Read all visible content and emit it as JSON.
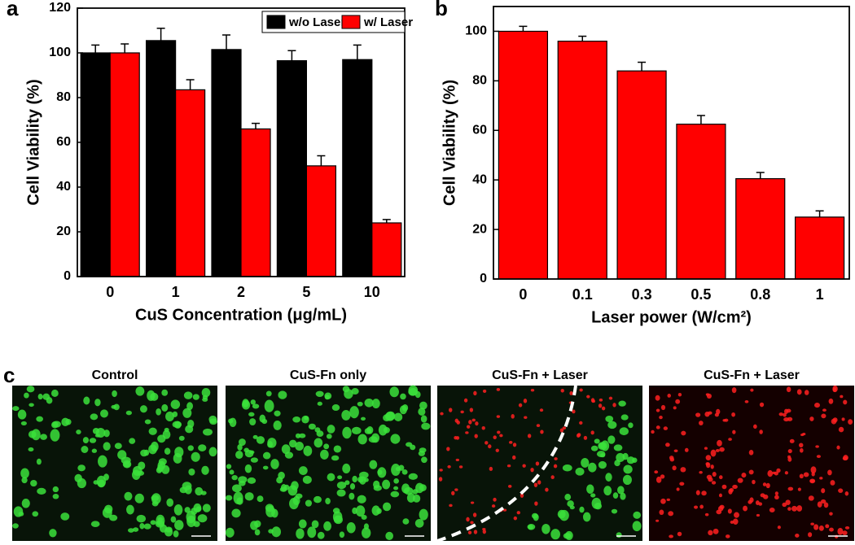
{
  "chart_data": [
    {
      "type": "bar",
      "panel_label": "a",
      "xlabel": "CuS Concentration (μg/mL)",
      "ylabel": "Cell Viability (%)",
      "categories": [
        "0",
        "1",
        "2",
        "5",
        "10"
      ],
      "series": [
        {
          "name": "w/o Laser",
          "color": "#000000",
          "values": [
            100,
            105.5,
            101.5,
            96.5,
            97
          ],
          "errors": [
            3.5,
            5.5,
            6.5,
            4.5,
            6.5
          ]
        },
        {
          "name": "w/ Laser",
          "color": "#ff0000",
          "values": [
            100,
            83.5,
            66,
            49.5,
            24
          ],
          "errors": [
            4,
            4.5,
            2.5,
            4.5,
            1.5
          ]
        }
      ],
      "ylim": [
        0,
        120
      ],
      "yticks": [
        0,
        20,
        40,
        60,
        80,
        100,
        120
      ],
      "legend": "upper right"
    },
    {
      "type": "bar",
      "panel_label": "b",
      "xlabel": "Laser power (W/cm²)",
      "ylabel": "Cell Viability (%)",
      "categories": [
        "0",
        "0.1",
        "0.3",
        "0.5",
        "0.8",
        "1"
      ],
      "series": [
        {
          "color": "#ff0000",
          "values": [
            100,
            96,
            84,
            62.5,
            40.5,
            25
          ],
          "errors": [
            2,
            2,
            3.5,
            3.5,
            2.5,
            2.5
          ]
        }
      ],
      "ylim": [
        0,
        110
      ],
      "yticks": [
        0,
        20,
        40,
        60,
        80,
        100
      ]
    }
  ],
  "images": {
    "panel_label": "c",
    "captions": [
      "Control",
      "CuS-Fn only",
      "CuS-Fn + Laser",
      "CuS-Fn + Laser"
    ]
  }
}
